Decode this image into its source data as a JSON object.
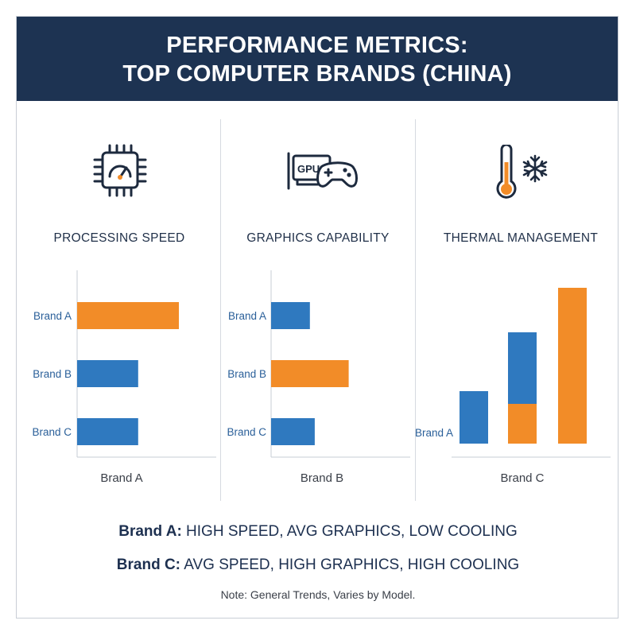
{
  "title_line1": "PERFORMANCE METRICS:",
  "title_line2": "TOP COMPUTER BRANDS (CHINA)",
  "colors": {
    "blue": "#2f79bf",
    "orange": "#f28c28",
    "header": "#1d3352"
  },
  "icons": [
    "cpu-speedometer-icon",
    "gpu-gamepad-icon",
    "thermometer-snowflake-icon"
  ],
  "gpu_icon_text": "GPU",
  "chart_data": [
    {
      "type": "bar",
      "orientation": "horizontal",
      "title": "PROCESSING SPEED",
      "xlabel": "Brand A",
      "categories": [
        "Brand A",
        "Brand B",
        "Brand C"
      ],
      "values": [
        100,
        60,
        60
      ],
      "colors": [
        "orange",
        "blue",
        "blue"
      ]
    },
    {
      "type": "bar",
      "orientation": "horizontal",
      "title": "GRAPHICS CAPABILITY",
      "xlabel": "Brand B",
      "categories": [
        "Brand A",
        "Brand B",
        "Brand C"
      ],
      "values": [
        40,
        80,
        45
      ],
      "colors": [
        "blue",
        "orange",
        "blue"
      ]
    },
    {
      "type": "bar",
      "orientation": "vertical",
      "stacked": true,
      "title": "THERMAL MANAGEMENT",
      "xlabel": "Brand C",
      "categories": [
        "Brand A",
        "",
        ""
      ],
      "series": [
        {
          "color": "blue",
          "values": [
            33,
            45,
            0
          ]
        },
        {
          "color": "orange",
          "values": [
            0,
            25,
            98
          ]
        }
      ]
    }
  ],
  "footer": {
    "line1_brand": "Brand A:",
    "line1_text": " HIGH SPEED, AVG GRAPHICS, LOW COOLING",
    "line2_brand": "Brand C:",
    "line2_text": " AVG SPEED, HIGH GRAPHICS, HIGH COOLING",
    "note": "Note: General Trends, Varies by Model."
  }
}
